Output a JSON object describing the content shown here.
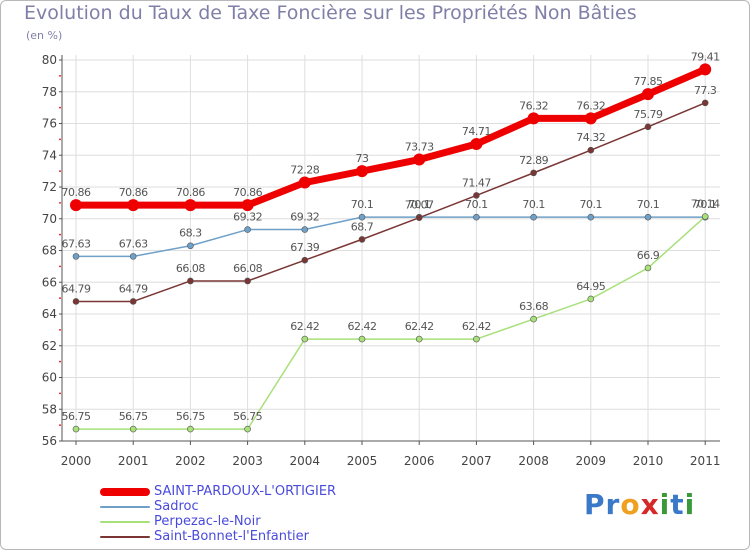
{
  "chart_data": {
    "type": "line",
    "title": "Evolution du Taux de Taxe Foncière sur les Propriétés Non Bâties",
    "ylabel": "(en %)",
    "xlabel": "",
    "categories": [
      "2000",
      "2001",
      "2002",
      "2003",
      "2004",
      "2005",
      "2006",
      "2007",
      "2008",
      "2009",
      "2010",
      "2011"
    ],
    "ylim": [
      56,
      80
    ],
    "yticks": [
      "56",
      "58",
      "60",
      "62",
      "64",
      "66",
      "68",
      "70",
      "72",
      "74",
      "76",
      "78",
      "80"
    ],
    "series": [
      {
        "name": "SAINT-PARDOUX-L'ORTIGIER",
        "color": "#ee0000",
        "emphasis": true,
        "values": [
          70.86,
          70.86,
          70.86,
          70.86,
          72.28,
          73,
          73.73,
          74.71,
          76.32,
          76.32,
          77.85,
          79.41
        ],
        "labels": [
          "70.86",
          "70.86",
          "70.86",
          "70.86",
          "72.28",
          "73",
          "73.73",
          "74.71",
          "76.32",
          "76.32",
          "77.85",
          "79.41"
        ]
      },
      {
        "name": "Sadroc",
        "color": "#6fa0c8",
        "values": [
          67.63,
          67.63,
          68.3,
          69.32,
          69.32,
          70.1,
          70.1,
          70.1,
          70.1,
          70.1,
          70.1,
          70.1
        ],
        "labels": [
          "67.63",
          "67.63",
          "68.3",
          "69.32",
          "69.32",
          "70.1",
          "70.1",
          "70.1",
          "70.1",
          "70.1",
          "70.1",
          "70.1"
        ]
      },
      {
        "name": "Perpezac-le-Noir",
        "color": "#a8e07a",
        "values": [
          56.75,
          56.75,
          56.75,
          56.75,
          62.42,
          62.42,
          62.42,
          62.42,
          63.68,
          64.95,
          66.9,
          70.14
        ],
        "labels": [
          "56.75",
          "56.75",
          "56.75",
          "56.75",
          "62.42",
          "62.42",
          "62.42",
          "62.42",
          "63.68",
          "64.95",
          "66.9",
          "70.14"
        ]
      },
      {
        "name": "Saint-Bonnet-l'Enfantier",
        "color": "#7a3535",
        "values": [
          64.79,
          64.79,
          66.08,
          66.08,
          67.39,
          68.7,
          70.07,
          71.47,
          72.89,
          74.32,
          75.79,
          77.3
        ],
        "labels": [
          "64.79",
          "64.79",
          "66.08",
          "66.08",
          "67.39",
          "68.7",
          "70.07",
          "71.47",
          "72.89",
          "74.32",
          "75.79",
          "77.3"
        ]
      }
    ]
  },
  "branding": {
    "logo_letters": [
      "P",
      "r",
      "o",
      "x",
      "i",
      "t",
      "i"
    ],
    "logo_colors": [
      "#3a78c8",
      "#3a78c8",
      "#f0a020",
      "#d62828",
      "#3a9a3a",
      "#3a78c8",
      "#3a9a3a"
    ]
  }
}
